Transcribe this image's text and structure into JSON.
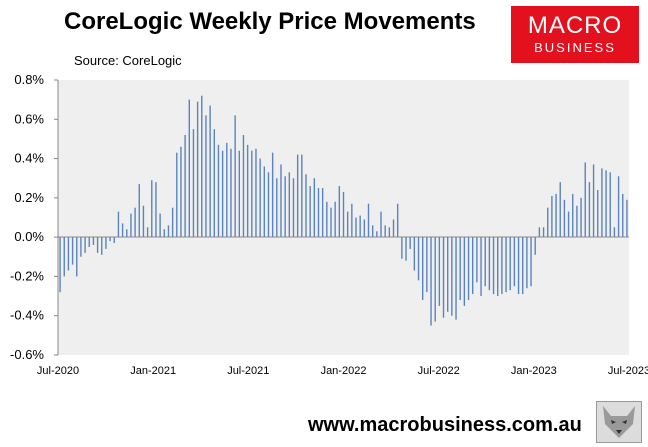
{
  "title": "CoreLogic Weekly Price Movements",
  "subtitle": "Source: CoreLogic",
  "logo": {
    "line1": "MACRO",
    "line2": "BUSINESS"
  },
  "footer": {
    "url": "www.macrobusiness.com.au"
  },
  "colors": {
    "bar": "#5b84be",
    "plot_bg": "#efefef",
    "logo_bg": "#e3101d"
  },
  "chart_data": {
    "type": "bar",
    "x_tick_labels": [
      "Jul-2020",
      "Jan-2021",
      "Jul-2021",
      "Jan-2022",
      "Jul-2022",
      "Jan-2023",
      "Jul-2023"
    ],
    "y_tick_labels": [
      "0.8%",
      "0.6%",
      "0.4%",
      "0.2%",
      "0.0%",
      "-0.2%",
      "-0.4%",
      "-0.6%"
    ],
    "ylim": [
      -0.6,
      0.8
    ],
    "xlim": [
      "2020-07",
      "2023-07"
    ],
    "series": [
      {
        "frequency": "weekly",
        "start": "2020-07",
        "values_percent": [
          -0.28,
          -0.2,
          -0.17,
          -0.14,
          -0.2,
          -0.1,
          -0.08,
          -0.05,
          -0.04,
          -0.08,
          -0.09,
          -0.06,
          -0.02,
          -0.03,
          0.13,
          0.07,
          0.04,
          0.12,
          0.15,
          0.27,
          0.16,
          0.05,
          0.29,
          0.28,
          0.12,
          0.04,
          0.06,
          0.15,
          0.43,
          0.46,
          0.52,
          0.7,
          0.55,
          0.69,
          0.72,
          0.62,
          0.67,
          0.55,
          0.47,
          0.44,
          0.48,
          0.45,
          0.62,
          0.44,
          0.52,
          0.47,
          0.44,
          0.45,
          0.4,
          0.36,
          0.33,
          0.43,
          0.3,
          0.37,
          0.31,
          0.33,
          0.3,
          0.42,
          0.42,
          0.32,
          0.26,
          0.3,
          0.25,
          0.25,
          0.18,
          0.15,
          0.18,
          0.26,
          0.23,
          0.13,
          0.17,
          0.1,
          0.11,
          0.09,
          0.17,
          0.06,
          0.03,
          0.13,
          0.06,
          0.05,
          0.09,
          0.17,
          -0.11,
          -0.12,
          -0.06,
          -0.17,
          -0.22,
          -0.32,
          -0.28,
          -0.45,
          -0.43,
          -0.35,
          -0.41,
          -0.38,
          -0.4,
          -0.42,
          -0.32,
          -0.35,
          -0.32,
          -0.29,
          -0.23,
          -0.3,
          -0.25,
          -0.27,
          -0.29,
          -0.3,
          -0.29,
          -0.28,
          -0.27,
          -0.25,
          -0.29,
          -0.29,
          -0.26,
          -0.25,
          -0.09,
          0.05,
          0.05,
          0.15,
          0.21,
          0.22,
          0.28,
          0.19,
          0.13,
          0.22,
          0.16,
          0.2,
          0.38,
          0.28,
          0.37,
          0.24,
          0.35,
          0.34,
          0.33,
          0.05,
          0.31,
          0.22,
          0.19
        ]
      }
    ],
    "grid": false,
    "legend": "none"
  }
}
